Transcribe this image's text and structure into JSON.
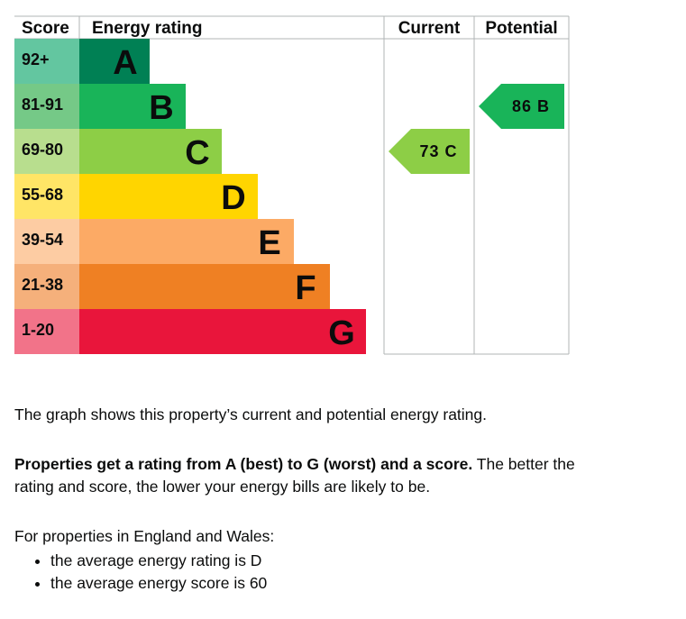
{
  "chart_data": {
    "type": "bar",
    "columns": {
      "score": "Score",
      "rating": "Energy rating",
      "current": "Current",
      "potential": "Potential"
    },
    "bands": [
      {
        "letter": "A",
        "range": "92+",
        "color": "#008054",
        "score_color": "#63c6a0"
      },
      {
        "letter": "B",
        "range": "81-91",
        "color": "#19b459",
        "score_color": "#75c987"
      },
      {
        "letter": "C",
        "range": "69-80",
        "color": "#8dce46",
        "score_color": "#b8de8e"
      },
      {
        "letter": "D",
        "range": "55-68",
        "color": "#ffd500",
        "score_color": "#ffe566"
      },
      {
        "letter": "E",
        "range": "39-54",
        "color": "#fcaa65",
        "score_color": "#fdcca3"
      },
      {
        "letter": "F",
        "range": "21-38",
        "color": "#ef8023",
        "score_color": "#f5b07b"
      },
      {
        "letter": "G",
        "range": "1-20",
        "color": "#e9153b",
        "score_color": "#f27389"
      }
    ],
    "current": {
      "score": 73,
      "band": "C",
      "label": "73 C"
    },
    "potential": {
      "score": 86,
      "band": "B",
      "label": "86 B"
    }
  },
  "text": {
    "intro": "The graph shows this property’s current and potential energy rating.",
    "bold_lead": "Properties get a rating from A (best) to G (worst) and a score.",
    "lead_rest": " The better the rating and score, the lower your energy bills are likely to be.",
    "regional_intro": "For properties in England and Wales:",
    "bullets": [
      "the average energy rating is D",
      "the average energy score is 60"
    ]
  }
}
